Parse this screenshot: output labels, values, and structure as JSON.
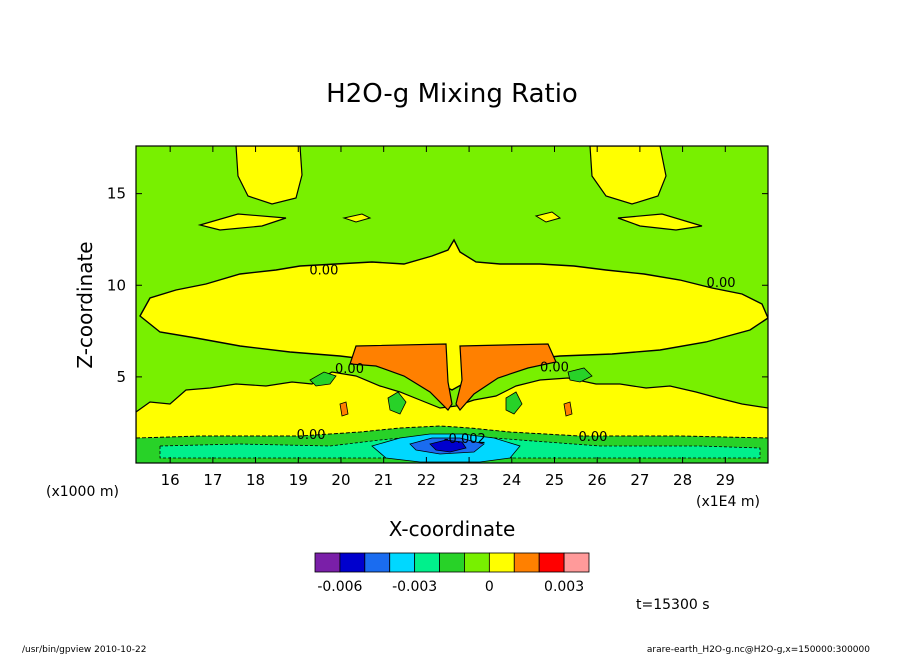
{
  "chart_data": {
    "type": "heatmap",
    "title": "H2O-g Mixing Ratio",
    "xlabel": "X-coordinate",
    "ylabel": "Z-coordinate",
    "x_unit_label": "(x1E4 m)",
    "y_unit_label": "(x1000 m)",
    "xlim": [
      15.2,
      30.0
    ],
    "ylim": [
      0.3,
      17.6
    ],
    "x_ticks": [
      16,
      17,
      18,
      19,
      20,
      21,
      22,
      23,
      24,
      25,
      26,
      27,
      28,
      29
    ],
    "y_ticks": [
      5,
      10,
      15
    ],
    "contour_labels": [
      {
        "text": "0.00",
        "x": 19.6,
        "z": 10.6
      },
      {
        "text": "0.00",
        "x": 28.9,
        "z": 9.9
      },
      {
        "text": "0.00",
        "x": 20.2,
        "z": 5.2
      },
      {
        "text": "0.00",
        "x": 25.0,
        "z": 5.3
      },
      {
        "text": "0.00",
        "x": 19.3,
        "z": 1.6
      },
      {
        "text": "0.00",
        "x": 25.9,
        "z": 1.5
      },
      {
        "text": "-0.002",
        "x": 22.9,
        "z": 1.4
      }
    ],
    "colorbar": {
      "colors": [
        "#7a1fa8",
        "#0000cd",
        "#1a6cf0",
        "#00d8ff",
        "#00f08c",
        "#28d228",
        "#78f000",
        "#ffff00",
        "#ff8000",
        "#ff0000",
        "#ff9a9a"
      ],
      "tick_labels": [
        "-0.006",
        "-0.003",
        "0",
        "0.003"
      ]
    },
    "time_label": "t=15300 s",
    "grid": false,
    "legend": "bottom-center colorbar"
  },
  "footer": {
    "left": "/usr/bin/gpview   2010-10-22",
    "right": "arare-earth_H2O-g.nc@H2O-g,x=150000:300000"
  }
}
